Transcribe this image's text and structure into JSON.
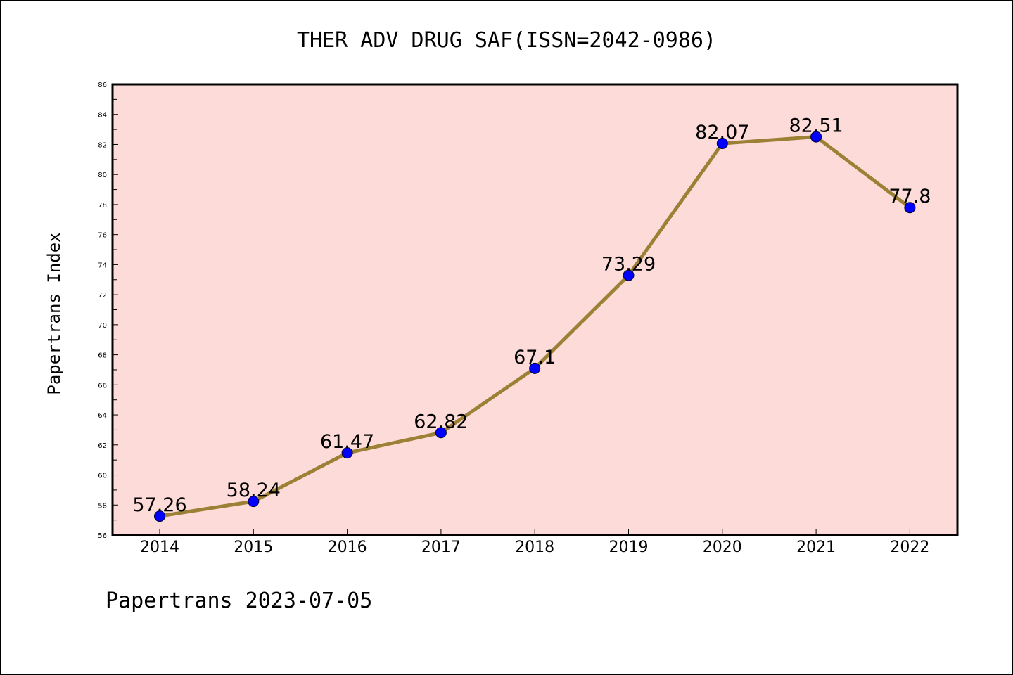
{
  "chart_data": {
    "type": "line",
    "title": "THER ADV DRUG SAF(ISSN=2042-0986)",
    "xlabel": "",
    "ylabel": "Papertrans Index",
    "footer": "Papertrans 2023-07-05",
    "categories": [
      "2014",
      "2015",
      "2016",
      "2017",
      "2018",
      "2019",
      "2020",
      "2021",
      "2022"
    ],
    "series": [
      {
        "values": [
          57.26,
          58.24,
          61.47,
          62.82,
          67.1,
          73.29,
          82.07,
          82.51,
          77.8
        ],
        "labels": [
          "57.26",
          "58.24",
          "61.47",
          "62.82",
          "67.1",
          "73.29",
          "82.07",
          "82.51",
          "77.8"
        ]
      }
    ],
    "ylim": [
      56,
      86
    ],
    "yticks": [
      "56",
      "58",
      "60",
      "62",
      "64",
      "66",
      "68",
      "70",
      "72",
      "74",
      "76",
      "78",
      "80",
      "82",
      "84",
      "86"
    ],
    "grid": false,
    "colors": {
      "plot_background": "#fddbd8",
      "line": "#9b8036",
      "marker": "#0000ff"
    }
  }
}
